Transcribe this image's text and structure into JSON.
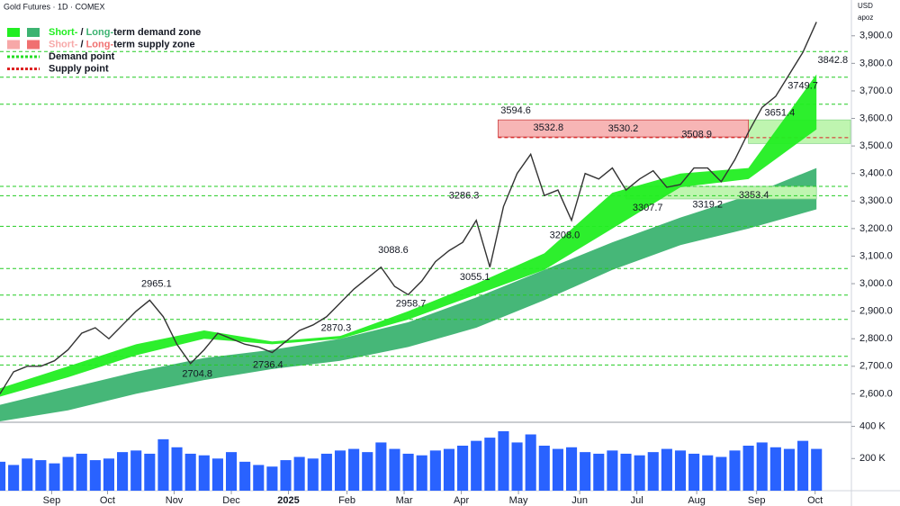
{
  "chart_data": {
    "type": "line",
    "title": "Gold Futures · 1D · COMEX",
    "currency": "USD",
    "scale_mode": "apoz",
    "legend": [
      {
        "parts": [
          "Short-",
          " / ",
          "Long-",
          "term demand zone"
        ],
        "colors": [
          "#22ee22",
          "#3cb371"
        ]
      },
      {
        "parts": [
          "Short-",
          " / ",
          "Long-",
          "term supply zone"
        ],
        "colors": [
          "#f7a8a8",
          "#f07070"
        ]
      },
      {
        "parts": [
          "Demand point"
        ],
        "colors": [
          "#22dd22"
        ]
      },
      {
        "parts": [
          "Supply point"
        ],
        "colors": [
          "#dd2222"
        ]
      }
    ],
    "xlim": [
      0,
      62.5
    ],
    "xticks": [
      {
        "value": 3.8,
        "label": "Sep"
      },
      {
        "value": 7.9,
        "label": "Oct"
      },
      {
        "value": 12.8,
        "label": "Nov"
      },
      {
        "value": 17,
        "label": "Dec"
      },
      {
        "value": 21.2,
        "label": "2025"
      },
      {
        "value": 25.5,
        "label": "Feb"
      },
      {
        "value": 29.7,
        "label": "Mar"
      },
      {
        "value": 33.9,
        "label": "Apr"
      },
      {
        "value": 38.1,
        "label": "May"
      },
      {
        "value": 42.6,
        "label": "Jun"
      },
      {
        "value": 46.8,
        "label": "Jul"
      },
      {
        "value": 51.2,
        "label": "Aug"
      },
      {
        "value": 55.6,
        "label": "Sep"
      },
      {
        "value": 59.9,
        "label": "Oct"
      }
    ],
    "ylim": [
      2500,
      4030
    ],
    "yticks": [
      {
        "value": 2600,
        "label": "2,600.0"
      },
      {
        "value": 2700,
        "label": "2,700.0"
      },
      {
        "value": 2800,
        "label": "2,800.0"
      },
      {
        "value": 2900,
        "label": "2,900.0"
      },
      {
        "value": 3000,
        "label": "3,000.0"
      },
      {
        "value": 3100,
        "label": "3,100.0"
      },
      {
        "value": 3200,
        "label": "3,200.0"
      },
      {
        "value": 3300,
        "label": "3,300.0"
      },
      {
        "value": 3400,
        "label": "3,400.0"
      },
      {
        "value": 3500,
        "label": "3,500.0"
      },
      {
        "value": 3600,
        "label": "3,600.0"
      },
      {
        "value": 3700,
        "label": "3,700.0"
      },
      {
        "value": 3800,
        "label": "3,800.0"
      },
      {
        "value": 3900,
        "label": "3,900.0"
      }
    ],
    "series": [
      {
        "color": "#333333",
        "x": [
          0,
          1,
          2,
          3,
          4,
          5,
          6,
          7,
          8,
          9,
          10,
          11,
          12,
          13,
          14,
          15,
          16,
          17,
          18,
          19,
          20,
          21,
          22,
          23,
          24,
          25,
          26,
          27,
          28,
          29,
          30,
          31,
          32,
          33,
          34,
          35,
          36,
          37,
          38,
          39,
          40,
          41,
          42,
          43,
          44,
          45,
          46,
          47,
          48,
          49,
          50,
          51,
          52,
          53,
          54,
          55,
          56,
          57,
          58,
          59,
          60
        ],
        "values": [
          2600,
          2680,
          2700,
          2700,
          2720,
          2760,
          2820,
          2840,
          2800,
          2850,
          2900,
          2940,
          2880,
          2780,
          2710,
          2760,
          2820,
          2800,
          2780,
          2770,
          2750,
          2790,
          2830,
          2850,
          2880,
          2930,
          2980,
          3020,
          3060,
          2990,
          2960,
          3010,
          3080,
          3120,
          3150,
          3230,
          3060,
          3280,
          3400,
          3470,
          3320,
          3340,
          3230,
          3400,
          3380,
          3420,
          3340,
          3380,
          3410,
          3350,
          3360,
          3420,
          3420,
          3370,
          3450,
          3550,
          3640,
          3680,
          3760,
          3840,
          3950
        ]
      }
    ],
    "band_x": [
      0,
      5,
      10,
      15,
      20,
      25,
      30,
      35,
      40,
      45,
      50,
      55,
      60
    ],
    "short_band": {
      "color": "#22ee22",
      "upper": [
        2620,
        2700,
        2780,
        2830,
        2790,
        2810,
        2900,
        3000,
        3110,
        3330,
        3400,
        3420,
        3760
      ],
      "lower": [
        2590,
        2660,
        2740,
        2800,
        2780,
        2800,
        2870,
        2960,
        3050,
        3200,
        3350,
        3380,
        3560
      ]
    },
    "long_band": {
      "color": "#3cb371",
      "upper": [
        2560,
        2620,
        2680,
        2730,
        2760,
        2800,
        2860,
        2950,
        3050,
        3150,
        3240,
        3320,
        3420
      ],
      "lower": [
        2500,
        2540,
        2600,
        2650,
        2690,
        2720,
        2770,
        2840,
        2940,
        3050,
        3140,
        3200,
        3270
      ]
    },
    "supply_zone": {
      "color": "#f7b5b5",
      "x": [
        36.6,
        55
      ],
      "range": [
        3532.8,
        3594.6
      ]
    },
    "demand_zones": [
      {
        "color": "#bff5b0",
        "x": [
          46,
          60
        ],
        "range": [
          3307.7,
          3353.4
        ]
      },
      {
        "color": "#bff5b0",
        "x": [
          55,
          62.5
        ],
        "range": [
          3508.9,
          3594.6
        ]
      }
    ],
    "demand_points": [
      3842.8,
      3749.7,
      3651.4,
      3353.4,
      3319.2,
      3208.0,
      3055.1,
      2958.7,
      2870.3,
      2736.4,
      2704.8
    ],
    "supply_points": [
      3530.2
    ],
    "annotations": [
      {
        "text": "2965.1",
        "x": 11.5,
        "y": 2965.1,
        "pos": "above"
      },
      {
        "text": "2704.8",
        "x": 14.5,
        "y": 2704.8,
        "pos": "below"
      },
      {
        "text": "2736.4",
        "x": 19.7,
        "y": 2736.4,
        "pos": "below"
      },
      {
        "text": "2870.3",
        "x": 24.7,
        "y": 2870.3,
        "pos": "below"
      },
      {
        "text": "3088.6",
        "x": 28.9,
        "y": 3088.6,
        "pos": "above"
      },
      {
        "text": "2958.7",
        "x": 30.2,
        "y": 2958.7,
        "pos": "below"
      },
      {
        "text": "3286.3",
        "x": 34.1,
        "y": 3286.3,
        "pos": "above"
      },
      {
        "text": "3055.1",
        "x": 34.9,
        "y": 3055.1,
        "pos": "below"
      },
      {
        "text": "3594.6",
        "x": 37.9,
        "y": 3594.6,
        "pos": "above"
      },
      {
        "text": "3532.8",
        "x": 40.3,
        "y": 3532.8,
        "pos": "above"
      },
      {
        "text": "3208.0",
        "x": 41.5,
        "y": 3208.0,
        "pos": "below"
      },
      {
        "text": "3530.2",
        "x": 45.8,
        "y": 3530.2,
        "pos": "above"
      },
      {
        "text": "3307.7",
        "x": 47.6,
        "y": 3307.7,
        "pos": "below"
      },
      {
        "text": "3508.9",
        "x": 51.2,
        "y": 3508.9,
        "pos": "above"
      },
      {
        "text": "3319.2",
        "x": 52.0,
        "y": 3319.2,
        "pos": "below"
      },
      {
        "text": "3353.4",
        "x": 55.4,
        "y": 3353.4,
        "pos": "below"
      },
      {
        "text": "3651.4",
        "x": 57.3,
        "y": 3651.4,
        "pos": "below"
      },
      {
        "text": "3749.7",
        "x": 59.0,
        "y": 3749.7,
        "pos": "below"
      },
      {
        "text": "3842.8",
        "x": 61.2,
        "y": 3842.8,
        "pos": "below"
      }
    ],
    "volume": {
      "color": "#2962ff",
      "ylim": [
        0,
        420
      ],
      "yticks": [
        {
          "value": 200,
          "label": "200 K"
        },
        {
          "value": 400,
          "label": "400 K"
        }
      ],
      "values": [
        180,
        160,
        200,
        190,
        170,
        210,
        230,
        190,
        200,
        240,
        250,
        230,
        320,
        270,
        230,
        220,
        200,
        240,
        180,
        160,
        150,
        190,
        210,
        200,
        230,
        250,
        260,
        240,
        300,
        260,
        230,
        220,
        250,
        260,
        280,
        310,
        330,
        370,
        300,
        350,
        280,
        260,
        270,
        240,
        230,
        250,
        230,
        220,
        240,
        260,
        250,
        230,
        220,
        210,
        250,
        280,
        300,
        270,
        260,
        310,
        260
      ]
    }
  }
}
